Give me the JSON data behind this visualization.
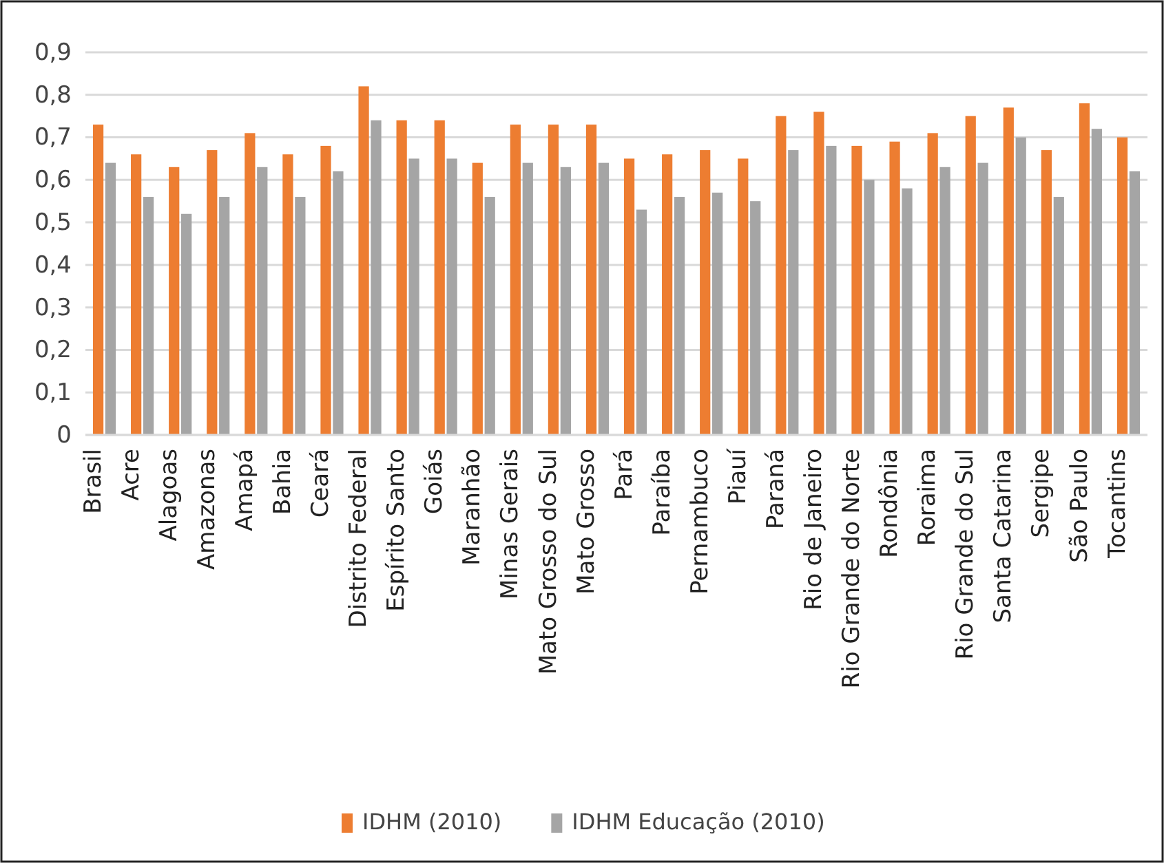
{
  "chart_data": {
    "type": "bar",
    "categories": [
      "Brasil",
      "Acre",
      "Alagoas",
      "Amazonas",
      "Amapá",
      "Bahia",
      "Ceará",
      "Distrito Federal",
      "Espírito Santo",
      "Goiás",
      "Maranhão",
      "Minas Gerais",
      "Mato Grosso do Sul",
      "Mato Grosso",
      "Pará",
      "Paraíba",
      "Pernambuco",
      "Piauí",
      "Paraná",
      "Rio de Janeiro",
      "Rio Grande do Norte",
      "Rondônia",
      "Roraima",
      "Rio Grande do Sul",
      "Santa Catarina",
      "Sergipe",
      "São Paulo",
      "Tocantins"
    ],
    "series": [
      {
        "name": "IDHM (2010)",
        "color": "#ed7d31",
        "values": [
          0.73,
          0.66,
          0.63,
          0.67,
          0.71,
          0.66,
          0.68,
          0.82,
          0.74,
          0.74,
          0.64,
          0.73,
          0.73,
          0.73,
          0.65,
          0.66,
          0.67,
          0.65,
          0.75,
          0.76,
          0.68,
          0.69,
          0.71,
          0.75,
          0.77,
          0.67,
          0.78,
          0.7
        ]
      },
      {
        "name": "IDHM Educação (2010)",
        "color": "#a5a5a5",
        "values": [
          0.64,
          0.56,
          0.52,
          0.56,
          0.63,
          0.56,
          0.62,
          0.74,
          0.65,
          0.65,
          0.56,
          0.64,
          0.63,
          0.64,
          0.53,
          0.56,
          0.57,
          0.55,
          0.67,
          0.68,
          0.6,
          0.58,
          0.63,
          0.64,
          0.7,
          0.56,
          0.72,
          0.62
        ]
      }
    ],
    "ylim": [
      0,
      0.9
    ],
    "yticks": [
      {
        "value": 0,
        "label": "0"
      },
      {
        "value": 0.1,
        "label": "0,1"
      },
      {
        "value": 0.2,
        "label": "0,2"
      },
      {
        "value": 0.3,
        "label": "0,3"
      },
      {
        "value": 0.4,
        "label": "0,4"
      },
      {
        "value": 0.5,
        "label": "0,5"
      },
      {
        "value": 0.6,
        "label": "0,6"
      },
      {
        "value": 0.7,
        "label": "0,7"
      },
      {
        "value": 0.8,
        "label": "0,8"
      },
      {
        "value": 0.9,
        "label": "0,9"
      }
    ],
    "grid": "y",
    "legend": "bottom"
  }
}
